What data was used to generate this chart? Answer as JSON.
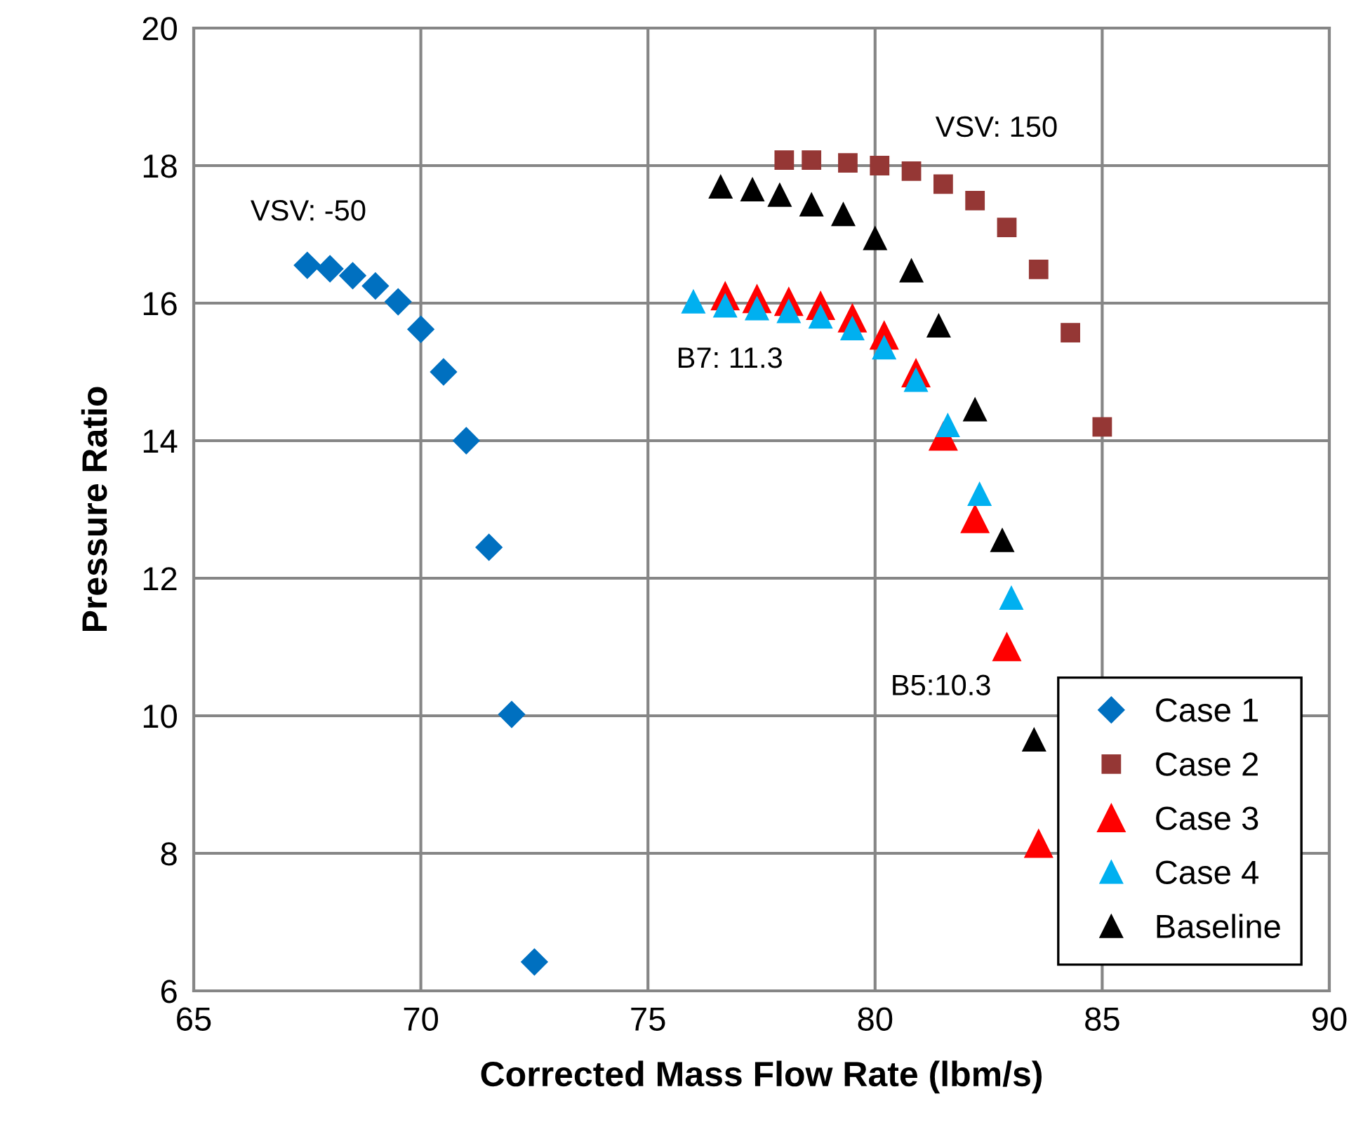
{
  "chart_data": {
    "type": "scatter",
    "xlabel": "Corrected Mass Flow Rate (lbm/s)",
    "ylabel": "Pressure Ratio",
    "xlim": [
      65,
      90
    ],
    "xticks": [
      65,
      70,
      75,
      80,
      85,
      90
    ],
    "ylim": [
      6,
      20
    ],
    "yticks": [
      6,
      8,
      10,
      12,
      14,
      16,
      18,
      20
    ],
    "grid": true,
    "legend": "bottom right",
    "series": [
      {
        "name": "Case 1",
        "color": "#0070c0",
        "marker": "diamond",
        "x": [
          67.5,
          68,
          68.5,
          69,
          69.5,
          70,
          70.5,
          71,
          71.5,
          72,
          72.5
        ],
        "values": [
          16.55,
          16.5,
          16.4,
          16.25,
          16.02,
          15.62,
          15.0,
          14.0,
          12.45,
          10.02,
          6.42
        ]
      },
      {
        "name": "Case 2",
        "color": "#953735",
        "marker": "square",
        "x": [
          78.0,
          78.6,
          79.4,
          80.1,
          80.8,
          81.5,
          82.2,
          82.9,
          83.6,
          84.3,
          85.0
        ],
        "values": [
          18.08,
          18.08,
          18.04,
          18.0,
          17.92,
          17.73,
          17.49,
          17.1,
          16.49,
          15.57,
          14.2
        ]
      },
      {
        "name": "Case 3",
        "color": "#ff0000",
        "marker": "triangle",
        "x": [
          76.7,
          77.4,
          78.1,
          78.8,
          79.5,
          80.2,
          80.9,
          81.5,
          82.2,
          82.9,
          83.6
        ],
        "values": [
          16.1,
          16.06,
          16.02,
          15.96,
          15.78,
          15.53,
          14.98,
          14.06,
          12.86,
          11.0,
          8.14
        ]
      },
      {
        "name": "Case 4",
        "color": "#00b0f0",
        "marker": "triangle",
        "x": [
          76.0,
          76.7,
          77.4,
          78.1,
          78.8,
          79.5,
          80.2,
          80.9,
          81.6,
          82.3,
          83.0
        ],
        "values": [
          16.02,
          15.96,
          15.92,
          15.88,
          15.8,
          15.63,
          15.35,
          14.88,
          14.22,
          13.22,
          11.71
        ]
      },
      {
        "name": "Baseline",
        "color": "#000000",
        "marker": "triangle",
        "x": [
          76.6,
          77.3,
          77.9,
          78.6,
          79.3,
          80.0,
          80.8,
          81.4,
          82.2,
          82.8,
          83.5
        ],
        "values": [
          17.69,
          17.65,
          17.57,
          17.43,
          17.29,
          16.94,
          16.47,
          15.67,
          14.45,
          12.55,
          9.65
        ]
      }
    ],
    "annotations": [
      "VSV: -50",
      "VSV: 150",
      "B7: 11.3",
      "B5:10.3"
    ]
  }
}
